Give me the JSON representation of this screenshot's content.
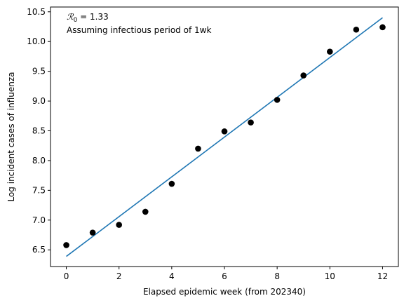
{
  "chart_data": {
    "type": "scatter",
    "xlabel": "Elapsed epidemic week (from 202340)",
    "ylabel": "Log incident cases of influenza",
    "xlim": [
      -0.6,
      12.6
    ],
    "ylim": [
      6.22,
      10.58
    ],
    "xticks": [
      0,
      2,
      4,
      6,
      8,
      10,
      12
    ],
    "yticks": [
      6.5,
      7.0,
      7.5,
      8.0,
      8.5,
      9.0,
      9.5,
      10.0,
      10.5
    ],
    "xtick_labels": [
      "0",
      "2",
      "4",
      "6",
      "8",
      "10",
      "12"
    ],
    "ytick_labels": [
      "6.5",
      "7.0",
      "7.5",
      "8.0",
      "8.5",
      "9.0",
      "9.5",
      "10.0",
      "10.5"
    ],
    "grid": false,
    "series": [
      {
        "kind": "points",
        "color": "#000000",
        "x": [
          0,
          1,
          2,
          3,
          4,
          5,
          6,
          7,
          8,
          9,
          10,
          11,
          12
        ],
        "y": [
          6.58,
          6.79,
          6.92,
          7.14,
          7.61,
          8.2,
          8.49,
          8.64,
          9.02,
          9.43,
          9.83,
          10.2,
          10.24
        ]
      },
      {
        "kind": "fit-line",
        "color": "#1f77b4",
        "x": [
          0,
          12
        ],
        "y": [
          6.39,
          10.4
        ]
      }
    ],
    "annotation": {
      "r0_symbol": "ℛ",
      "r0_subscript": "0",
      "r0_value": " = 1.33",
      "infectious_period": "Assuming infectious period of 1wk"
    }
  }
}
